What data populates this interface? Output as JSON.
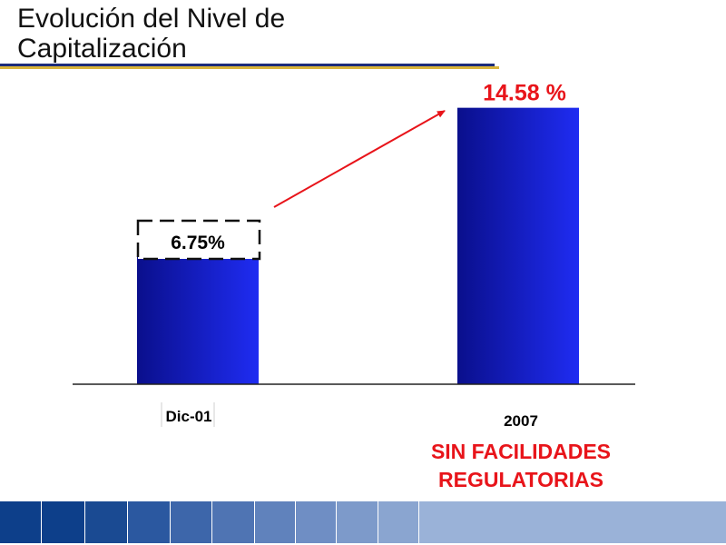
{
  "title": {
    "line1": "Evolución del Nivel de",
    "line2": "Capitalización"
  },
  "chart_data": {
    "type": "bar",
    "categories": [
      "Dic-01",
      "2007"
    ],
    "values": [
      6.75,
      14.58
    ],
    "value_labels": [
      "6.75%",
      "14.58 %"
    ],
    "ylim": [
      0,
      16
    ],
    "grid": false,
    "colors": {
      "bar_dark": "#0a0f8c",
      "bar_light": "#1f2cf2",
      "highlight": "#e8141a",
      "axis": "#222222"
    }
  },
  "note": {
    "line1": "SIN FACILIDADES",
    "line2": "REGULATORIAS"
  },
  "footer_colors": [
    "#0d3f8a",
    "#0d3f8a",
    "#1a4a92",
    "#2b58a0",
    "#3d66aa",
    "#4f74b3",
    "#6082bc",
    "#6f8ec4",
    "#7d9aca",
    "#8aa5d0",
    "#9ab2d8"
  ]
}
